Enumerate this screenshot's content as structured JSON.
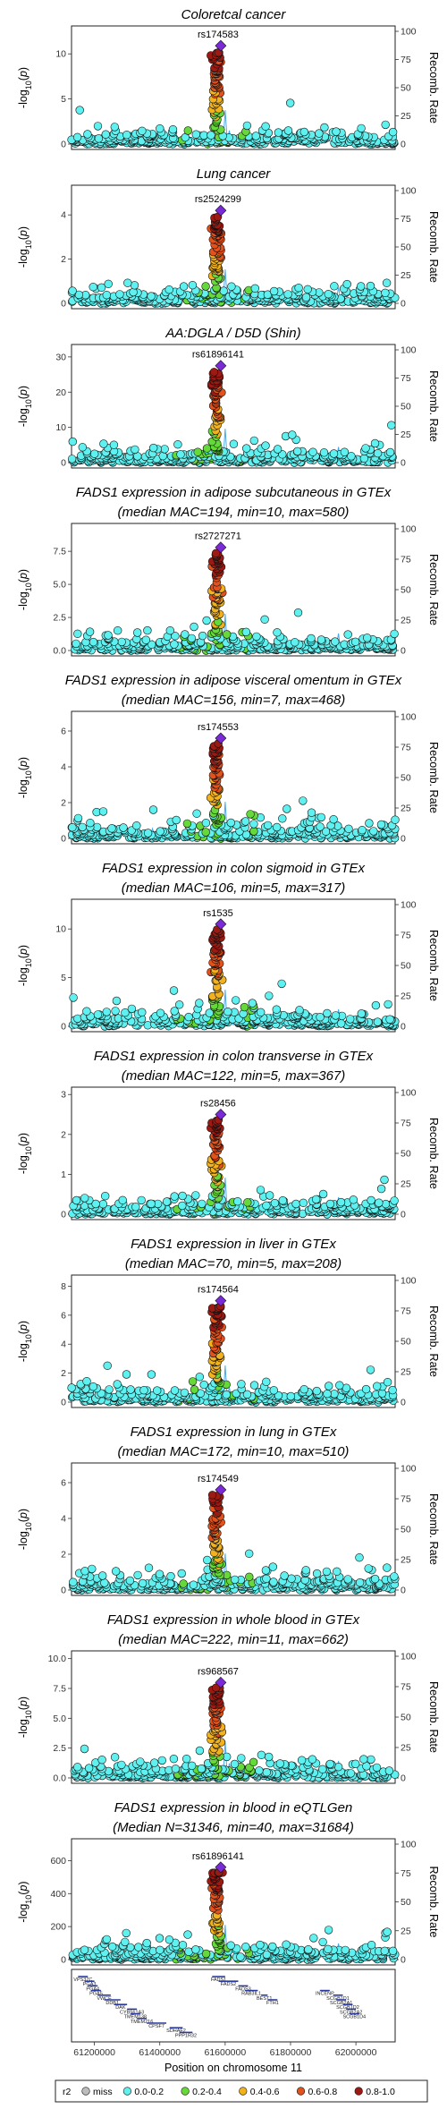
{
  "chart_data": {
    "type": "scatter",
    "kind": "regional association plot",
    "x_range": [
      61130000,
      62120000
    ],
    "lead_x": 61570000,
    "y_label": "-log10(p)",
    "y2_label": "Recomb. Rate",
    "y2_ticks": [
      "0",
      "25",
      "50",
      "75",
      "100"
    ],
    "y2_range": [
      0,
      100
    ],
    "colors": {
      "miss": "#bdbdbd",
      "0.0-0.2": "#5ff0f0",
      "0.2-0.4": "#66d93a",
      "0.4-0.6": "#f2b21e",
      "0.6-0.8": "#e3521c",
      "0.8-1.0": "#9c1a12",
      "lead": "#7a2ad6",
      "recomb": "#4aa8e8"
    },
    "panels": [
      {
        "title": [
          "Coloretcal cancer"
        ],
        "lead_snp": "rs174583",
        "lead_p": 10.9,
        "ymax": 12.5,
        "yticks": [
          "0",
          "5",
          "10"
        ],
        "ytick_values": [
          0,
          5,
          10
        ]
      },
      {
        "title": [
          "Lung cancer"
        ],
        "lead_snp": "rs2524299",
        "lead_p": 4.2,
        "ymax": 5.1,
        "yticks": [
          "0",
          "2",
          "4"
        ],
        "ytick_values": [
          0,
          2,
          4
        ]
      },
      {
        "title": [
          "AA:DGLA / D5D (Shin)"
        ],
        "lead_snp": "rs61896141",
        "lead_p": 27.5,
        "ymax": 32,
        "yticks": [
          "0",
          "10",
          "20",
          "30"
        ],
        "ytick_values": [
          0,
          10,
          20,
          30
        ]
      },
      {
        "title": [
          "FADS1 expression in adipose subcutaneous in GTEx",
          "(median MAC=194, min=10, max=580)"
        ],
        "lead_snp": "rs2727271",
        "lead_p": 7.8,
        "ymax": 9.2,
        "yticks": [
          "0.0",
          "2.5",
          "5.0",
          "7.5"
        ],
        "ytick_values": [
          0,
          2.5,
          5,
          7.5
        ]
      },
      {
        "title": [
          "FADS1 expression in adipose visceral omentum in GTEx",
          "(median MAC=156, min=7, max=468)"
        ],
        "lead_snp": "rs174553",
        "lead_p": 5.6,
        "ymax": 6.8,
        "yticks": [
          "0",
          "2",
          "4",
          "6"
        ],
        "ytick_values": [
          0,
          2,
          4,
          6
        ]
      },
      {
        "title": [
          "FADS1 expression in colon sigmoid in GTEx",
          "(median MAC=106, min=5, max=317)"
        ],
        "lead_snp": "rs1535",
        "lead_p": 10.5,
        "ymax": 12.5,
        "yticks": [
          "0",
          "5",
          "10"
        ],
        "ytick_values": [
          0,
          5,
          10
        ]
      },
      {
        "title": [
          "FADS1 expression in colon transverse in GTEx",
          "(median MAC=122, min=5, max=367)"
        ],
        "lead_snp": "rs28456",
        "lead_p": 2.5,
        "ymax": 3.05,
        "yticks": [
          "0",
          "1",
          "2",
          "3"
        ],
        "ytick_values": [
          0,
          1,
          2,
          3
        ]
      },
      {
        "title": [
          "FADS1 expression in liver in GTEx",
          "(median MAC=70, min=5, max=208)"
        ],
        "lead_snp": "rs174564",
        "lead_p": 7.0,
        "ymax": 8.4,
        "yticks": [
          "0",
          "2",
          "4",
          "6",
          "8"
        ],
        "ytick_values": [
          0,
          2,
          4,
          6,
          8
        ]
      },
      {
        "title": [
          "FADS1 expression in lung in GTEx",
          "(median MAC=172, min=10, max=510)"
        ],
        "lead_snp": "rs174549",
        "lead_p": 5.6,
        "ymax": 6.8,
        "yticks": [
          "0",
          "2",
          "4",
          "6"
        ],
        "ytick_values": [
          0,
          2,
          4,
          6
        ]
      },
      {
        "title": [
          "FADS1 expression in whole blood in GTEx",
          "(median MAC=222, min=11, max=662)"
        ],
        "lead_snp": "rs968567",
        "lead_p": 8.0,
        "ymax": 10.2,
        "yticks": [
          "0.0",
          "2.5",
          "5.0",
          "7.5",
          "10.0"
        ],
        "ytick_values": [
          0,
          2.5,
          5,
          7.5,
          10
        ]
      },
      {
        "title": [
          "FADS1 expression in blood in eQTLGen",
          "(Median N=31346, min=40, max=31684)"
        ],
        "lead_snp": "rs61896141",
        "lead_p": 560,
        "ymax": 700,
        "yticks": [
          "0",
          "200",
          "400",
          "600"
        ],
        "ytick_values": [
          0,
          200,
          400,
          600
        ]
      }
    ],
    "genes": [
      {
        "name": "VPS37C",
        "start": 61150000,
        "end": 61180000,
        "row": 0
      },
      {
        "name": "PGA3",
        "start": 61170000,
        "end": 61200000,
        "row": 1
      },
      {
        "name": "PGA4",
        "start": 61180000,
        "end": 61210000,
        "row": 2
      },
      {
        "name": "PGA5",
        "start": 61190000,
        "end": 61220000,
        "row": 3
      },
      {
        "name": "VWCE",
        "start": 61210000,
        "end": 61250000,
        "row": 4
      },
      {
        "name": "DDB1",
        "start": 61230000,
        "end": 61280000,
        "row": 5
      },
      {
        "name": "DAK",
        "start": 61260000,
        "end": 61300000,
        "row": 6
      },
      {
        "name": "CYB561A3",
        "start": 61300000,
        "end": 61330000,
        "row": 7
      },
      {
        "name": "TMEM138",
        "start": 61310000,
        "end": 61340000,
        "row": 8
      },
      {
        "name": "TMEM216",
        "start": 61330000,
        "end": 61360000,
        "row": 9
      },
      {
        "name": "CPSF7",
        "start": 61360000,
        "end": 61420000,
        "row": 10
      },
      {
        "name": "SDHAF2",
        "start": 61430000,
        "end": 61470000,
        "row": 11
      },
      {
        "name": "PPP1R32",
        "start": 61460000,
        "end": 61500000,
        "row": 12
      },
      {
        "name": "FADS1",
        "start": 61560000,
        "end": 61600000,
        "row": 0
      },
      {
        "name": "FADS2",
        "start": 61580000,
        "end": 61640000,
        "row": 1
      },
      {
        "name": "FADS3",
        "start": 61640000,
        "end": 61670000,
        "row": 2
      },
      {
        "name": "RAB3IL1",
        "start": 61660000,
        "end": 61700000,
        "row": 3
      },
      {
        "name": "BEST1",
        "start": 61710000,
        "end": 61730000,
        "row": 4
      },
      {
        "name": "FTH1",
        "start": 61730000,
        "end": 61760000,
        "row": 5
      },
      {
        "name": "INCENP",
        "start": 61890000,
        "end": 61920000,
        "row": 3
      },
      {
        "name": "SCGB1D1",
        "start": 61930000,
        "end": 61960000,
        "row": 4
      },
      {
        "name": "SCGB2A1",
        "start": 61940000,
        "end": 61970000,
        "row": 5
      },
      {
        "name": "SCGB1D2",
        "start": 61960000,
        "end": 61990000,
        "row": 6
      },
      {
        "name": "SCGB2A2",
        "start": 61970000,
        "end": 62000000,
        "row": 7
      },
      {
        "name": "SCGB1D4",
        "start": 61980000,
        "end": 62010000,
        "row": 8
      }
    ],
    "x_ticks": [
      "61200000",
      "61400000",
      "61600000",
      "61800000",
      "62000000"
    ],
    "x_tick_values": [
      61200000,
      61400000,
      61600000,
      61800000,
      62000000
    ],
    "x_label": "Position on chromosome 11",
    "legend": {
      "title": "r2",
      "entries": [
        {
          "label": "miss",
          "color": "#bdbdbd"
        },
        {
          "label": "0.0-0.2",
          "color": "#5ff0f0"
        },
        {
          "label": "0.2-0.4",
          "color": "#66d93a"
        },
        {
          "label": "0.4-0.6",
          "color": "#f2b21e"
        },
        {
          "label": "0.6-0.8",
          "color": "#e3521c"
        },
        {
          "label": "0.8-1.0",
          "color": "#9c1a12"
        }
      ]
    }
  }
}
